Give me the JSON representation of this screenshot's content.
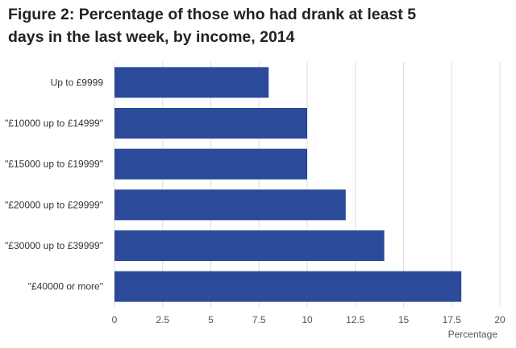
{
  "title_line1": "Figure 2: Percentage of those who had drank at least 5",
  "title_line2": "days in the last week, by income, 2014",
  "chart_data": {
    "type": "bar",
    "orientation": "horizontal",
    "title": "Figure 2: Percentage of those who had drank at least 5 days in the last week, by income, 2014",
    "categories": [
      "Up to £9999",
      "\"£10000 up to £14999\"",
      "\"£15000 up to £19999\"",
      "\"£20000 up to £29999\"",
      "\"£30000 up to £39999\"",
      "\"£40000 or more\""
    ],
    "values": [
      8,
      10,
      10,
      12,
      14,
      18
    ],
    "xlabel": "Percentage",
    "ylabel": "",
    "xlim": [
      0,
      20
    ],
    "ticks": [
      0,
      2.5,
      5,
      7.5,
      10,
      12.5,
      15,
      17.5,
      20
    ],
    "grid": "vertical",
    "legend": "none",
    "bar_color": "#2b4a9a",
    "grid_color": "#dddddd"
  }
}
